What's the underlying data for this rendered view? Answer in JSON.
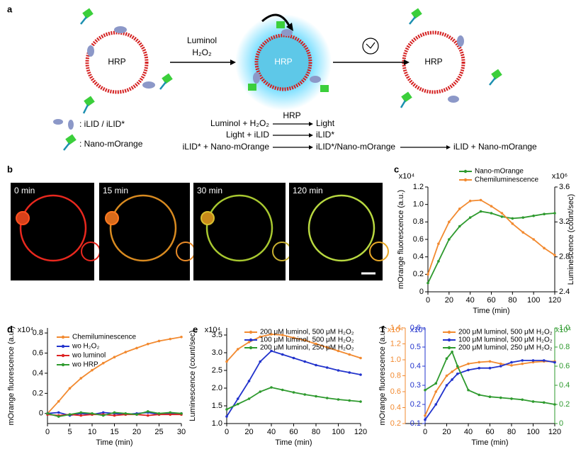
{
  "panel_labels": [
    "a",
    "b",
    "c",
    "d",
    "e",
    "f"
  ],
  "diagram": {
    "vesicle_labels": [
      "HRP",
      "HRP",
      "HRP"
    ],
    "arrow_label": [
      "Luminol",
      "H₂O₂"
    ],
    "legend": [
      ": iLID / iLID*",
      ": Nano-mOrange"
    ],
    "reactions": [
      {
        "left": "Luminol + H₂O₂",
        "catalyst": "HRP",
        "right": "Light"
      },
      {
        "left": "Light + iLID",
        "right": "iLID*"
      },
      {
        "left": "iLID* + Nano-mOrange",
        "right": "iLID*/Nano-mOrange",
        "product": "iLID + Nano-mOrange"
      }
    ]
  },
  "micrographs": {
    "labels": [
      "0 min",
      "15 min",
      "30 min",
      "120 min"
    ]
  },
  "chart_data": [
    {
      "type": "line",
      "xlabel": "Time (min)",
      "ylabel": "mOrange fluorescence (a.u.)",
      "y2label": "Luminescence (count/sec)",
      "yscale_label": "x10⁴",
      "y2scale_label": "x10⁶",
      "legend": "upper center",
      "x": [
        0,
        10,
        20,
        30,
        40,
        50,
        60,
        70,
        80,
        90,
        100,
        110,
        120
      ],
      "xlim": [
        0,
        120
      ],
      "xticks": [
        0,
        20,
        40,
        60,
        80,
        100,
        120
      ],
      "ylim": [
        0,
        1.2
      ],
      "yticks": [
        0,
        0.2,
        0.4,
        0.6,
        0.8,
        {
          "value": 1,
          "label": "1.0"
        },
        1.2
      ],
      "y2lim": [
        2.4,
        3.6
      ],
      "y2ticks": [
        2.4,
        2.8,
        3.2,
        3.6
      ],
      "series": [
        {
          "name": "Nano-mOrange",
          "color": "#2e9a2e",
          "values": [
            0.1,
            0.35,
            0.6,
            0.75,
            0.85,
            0.92,
            0.9,
            0.86,
            0.84,
            0.85,
            0.87,
            0.89,
            0.9
          ]
        },
        {
          "name": "Chemiluminescence",
          "color": "#f28a30",
          "axis": "y2",
          "values": [
            2.6,
            2.95,
            3.2,
            3.35,
            3.44,
            3.45,
            3.38,
            3.3,
            3.18,
            3.08,
            3.0,
            2.9,
            2.82
          ]
        }
      ]
    },
    {
      "type": "line",
      "xlabel": "Time (min)",
      "ylabel": "mOrange fluorescence (a.u.)",
      "yscale_label": "x10⁴",
      "legend": "upper left",
      "x": [
        0,
        2.5,
        5,
        7.5,
        10,
        12.5,
        15,
        17.5,
        20,
        22.5,
        25,
        27.5,
        30
      ],
      "xlim": [
        0,
        30
      ],
      "xticks": [
        0,
        5,
        10,
        15,
        20,
        25,
        30
      ],
      "ylim": [
        -0.1,
        0.85
      ],
      "yticks": [
        0,
        0.2,
        0.4,
        0.6,
        0.8
      ],
      "series": [
        {
          "name": "Chemiluminescence",
          "color": "#f28a30",
          "values": [
            0,
            0.12,
            0.25,
            0.35,
            0.43,
            0.5,
            0.56,
            0.61,
            0.65,
            0.69,
            0.72,
            0.74,
            0.76
          ]
        },
        {
          "name": "wo H₂O₂",
          "color": "#2233cc",
          "values": [
            0,
            0.01,
            -0.02,
            0.0,
            -0.01,
            0.01,
            0.0,
            -0.01,
            0.0,
            0.01,
            -0.01,
            0.0,
            0.0
          ]
        },
        {
          "name": "wo luminol",
          "color": "#dd2222",
          "values": [
            -0.01,
            -0.02,
            -0.01,
            -0.02,
            -0.01,
            -0.01,
            -0.02,
            -0.01,
            -0.01,
            -0.02,
            -0.01,
            -0.01,
            -0.01
          ]
        },
        {
          "name": "wo HRP",
          "color": "#2e9a2e",
          "values": [
            0,
            -0.03,
            -0.01,
            0.01,
            0.0,
            -0.02,
            0.01,
            0.0,
            -0.01,
            0.02,
            0.0,
            0.01,
            0.0
          ]
        }
      ]
    },
    {
      "type": "line",
      "xlabel": "Time (min)",
      "ylabel": "Luminescence (count/sec)",
      "yscale_label": "x10⁴",
      "legend": "upper center",
      "x": [
        0,
        10,
        20,
        30,
        40,
        50,
        60,
        70,
        80,
        90,
        100,
        110,
        120
      ],
      "xlim": [
        0,
        120
      ],
      "xticks": [
        0,
        20,
        40,
        60,
        80,
        100,
        120
      ],
      "ylim": [
        1,
        3.7
      ],
      "yticks": [
        {
          "value": 1,
          "label": "1.0"
        },
        1.5,
        {
          "value": 2,
          "label": "2.0"
        },
        2.5,
        {
          "value": 3,
          "label": "3.0"
        },
        3.5
      ],
      "series": [
        {
          "name": "200 μM luminol, 500 μM H₂O₂",
          "color": "#f28a30",
          "values": [
            2.75,
            3.1,
            3.3,
            3.45,
            3.52,
            3.5,
            3.42,
            3.35,
            3.25,
            3.15,
            3.05,
            2.95,
            2.85
          ]
        },
        {
          "name": "100 μM luminol, 500 μM H₂O₂",
          "color": "#2233cc",
          "values": [
            1.2,
            1.7,
            2.2,
            2.75,
            3.05,
            2.95,
            2.85,
            2.75,
            2.65,
            2.58,
            2.5,
            2.44,
            2.38
          ]
        },
        {
          "name": "200 μM luminol, 250 μM H₂O₂",
          "color": "#2e9a2e",
          "values": [
            1.4,
            1.55,
            1.7,
            1.9,
            2.02,
            1.95,
            1.88,
            1.82,
            1.77,
            1.72,
            1.68,
            1.65,
            1.62
          ]
        }
      ]
    },
    {
      "type": "line",
      "xlabel": "Time (min)",
      "ylabel": "mOrange fluorescence (a.u.)",
      "legend": "upper center",
      "yscale_label": "x10⁴",
      "y2scale_label": "x10⁴",
      "y3scale_label": "x10⁴",
      "ycolor": "#f28a30",
      "y2color": "#2233cc",
      "y3color": "#2e9a2e",
      "x": [
        0,
        10,
        20,
        25,
        30,
        40,
        50,
        60,
        70,
        80,
        90,
        100,
        110,
        120
      ],
      "xlim": [
        0,
        120
      ],
      "xticks": [
        0,
        20,
        40,
        60,
        80,
        100,
        120
      ],
      "ylim": [
        0.2,
        1.4
      ],
      "yticks": [
        0.2,
        0.4,
        0.6,
        0.8,
        {
          "value": 1,
          "label": "1.0"
        },
        1.2,
        1.4
      ],
      "y2lim": [
        0.1,
        0.6
      ],
      "y2ticks": [
        0.1,
        0.2,
        0.3,
        0.4,
        0.5,
        0.6
      ],
      "y3lim": [
        0,
        1
      ],
      "y3ticks": [
        0,
        0.2,
        0.4,
        0.6,
        0.8,
        {
          "value": 1,
          "label": "1.0"
        }
      ],
      "series": [
        {
          "name": "200 μM luminol, 500 μM H₂O₂",
          "color": "#f28a30",
          "values": [
            0.3,
            0.6,
            0.8,
            0.85,
            0.9,
            0.95,
            0.97,
            0.98,
            0.95,
            0.93,
            0.95,
            0.97,
            0.98,
            0.98
          ]
        },
        {
          "name": "100 μM luminol, 500 μM H₂O₂",
          "color": "#2233cc",
          "axis": "y2",
          "values": [
            0.12,
            0.2,
            0.3,
            0.33,
            0.36,
            0.38,
            0.39,
            0.39,
            0.4,
            0.42,
            0.43,
            0.43,
            0.43,
            0.42
          ]
        },
        {
          "name": "200 μM luminol, 250 μM H₂O₂",
          "color": "#2e9a2e",
          "axis": "y3",
          "values": [
            0.35,
            0.42,
            0.68,
            0.75,
            0.6,
            0.35,
            0.3,
            0.28,
            0.27,
            0.26,
            0.25,
            0.23,
            0.22,
            0.2
          ]
        }
      ]
    }
  ]
}
